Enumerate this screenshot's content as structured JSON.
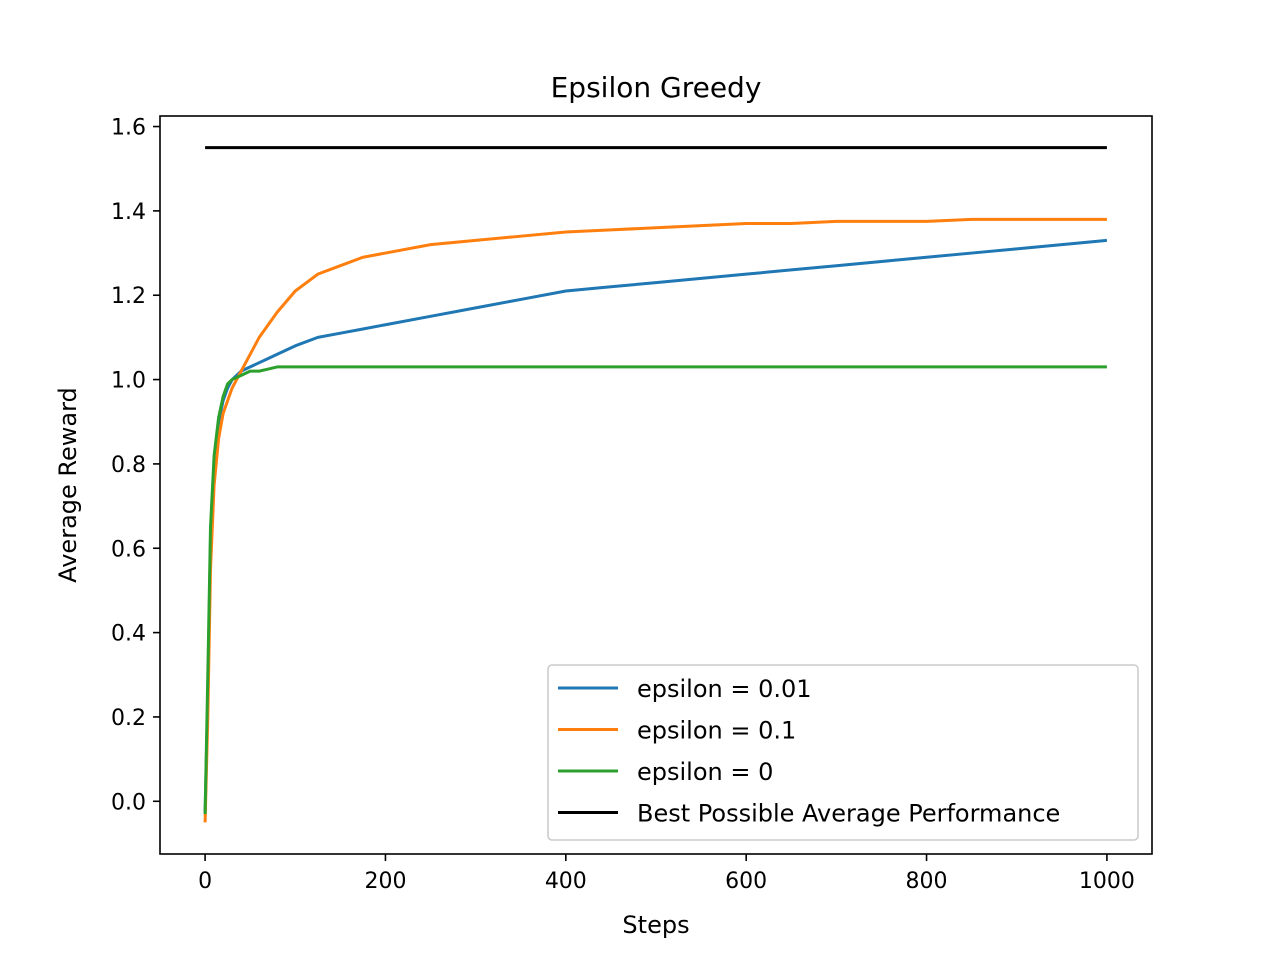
{
  "chart_data": {
    "type": "line",
    "title": "Epsilon Greedy",
    "xlabel": "Steps",
    "ylabel": "Average Reward",
    "xlim": [
      -50,
      1050
    ],
    "ylim": [
      -0.125,
      1.625
    ],
    "xticks": [
      0,
      200,
      400,
      600,
      800,
      1000
    ],
    "yticks": [
      0.0,
      0.2,
      0.4,
      0.6,
      0.8,
      1.0,
      1.2,
      1.4,
      1.6
    ],
    "xtick_labels": [
      "0",
      "200",
      "400",
      "600",
      "800",
      "1000"
    ],
    "ytick_labels": [
      "0.0",
      "0.2",
      "0.4",
      "0.6",
      "0.8",
      "1.0",
      "1.2",
      "1.4",
      "1.6"
    ],
    "grid": false,
    "legend_position": "lower-right",
    "series": [
      {
        "name": "epsilon = 0.01",
        "color": "#1f77b4",
        "x": [
          0,
          3,
          6,
          10,
          15,
          20,
          25,
          30,
          40,
          50,
          60,
          70,
          80,
          100,
          125,
          150,
          175,
          200,
          250,
          300,
          350,
          400,
          450,
          500,
          550,
          600,
          650,
          700,
          750,
          800,
          850,
          900,
          950,
          1000
        ],
        "y": [
          -0.03,
          0.25,
          0.62,
          0.8,
          0.9,
          0.95,
          0.98,
          1.0,
          1.02,
          1.03,
          1.04,
          1.05,
          1.06,
          1.08,
          1.1,
          1.11,
          1.12,
          1.13,
          1.15,
          1.17,
          1.19,
          1.21,
          1.22,
          1.23,
          1.24,
          1.25,
          1.26,
          1.27,
          1.28,
          1.29,
          1.3,
          1.31,
          1.32,
          1.33
        ]
      },
      {
        "name": "epsilon = 0.1",
        "color": "#ff7f0e",
        "x": [
          0,
          3,
          6,
          10,
          15,
          20,
          25,
          30,
          40,
          50,
          60,
          70,
          80,
          100,
          125,
          150,
          175,
          200,
          250,
          300,
          350,
          400,
          450,
          500,
          550,
          600,
          650,
          700,
          750,
          800,
          850,
          900,
          950,
          1000
        ],
        "y": [
          -0.05,
          0.2,
          0.55,
          0.75,
          0.86,
          0.92,
          0.95,
          0.98,
          1.02,
          1.06,
          1.1,
          1.13,
          1.16,
          1.21,
          1.25,
          1.27,
          1.29,
          1.3,
          1.32,
          1.33,
          1.34,
          1.35,
          1.355,
          1.36,
          1.365,
          1.37,
          1.37,
          1.375,
          1.375,
          1.375,
          1.38,
          1.38,
          1.38,
          1.38
        ]
      },
      {
        "name": "epsilon = 0",
        "color": "#2ca02c",
        "x": [
          0,
          3,
          6,
          10,
          15,
          20,
          25,
          30,
          40,
          50,
          60,
          70,
          80,
          100,
          125,
          150,
          175,
          200,
          250,
          300,
          350,
          400,
          450,
          500,
          550,
          600,
          650,
          700,
          750,
          800,
          850,
          900,
          950,
          1000
        ],
        "y": [
          -0.03,
          0.3,
          0.65,
          0.82,
          0.91,
          0.96,
          0.99,
          1.0,
          1.01,
          1.02,
          1.02,
          1.025,
          1.03,
          1.03,
          1.03,
          1.03,
          1.03,
          1.03,
          1.03,
          1.03,
          1.03,
          1.03,
          1.03,
          1.03,
          1.03,
          1.03,
          1.03,
          1.03,
          1.03,
          1.03,
          1.03,
          1.03,
          1.03,
          1.03
        ]
      },
      {
        "name": "Best Possible Average Performance",
        "color": "#000000",
        "x": [
          0,
          1000
        ],
        "y": [
          1.55,
          1.55
        ]
      }
    ]
  }
}
